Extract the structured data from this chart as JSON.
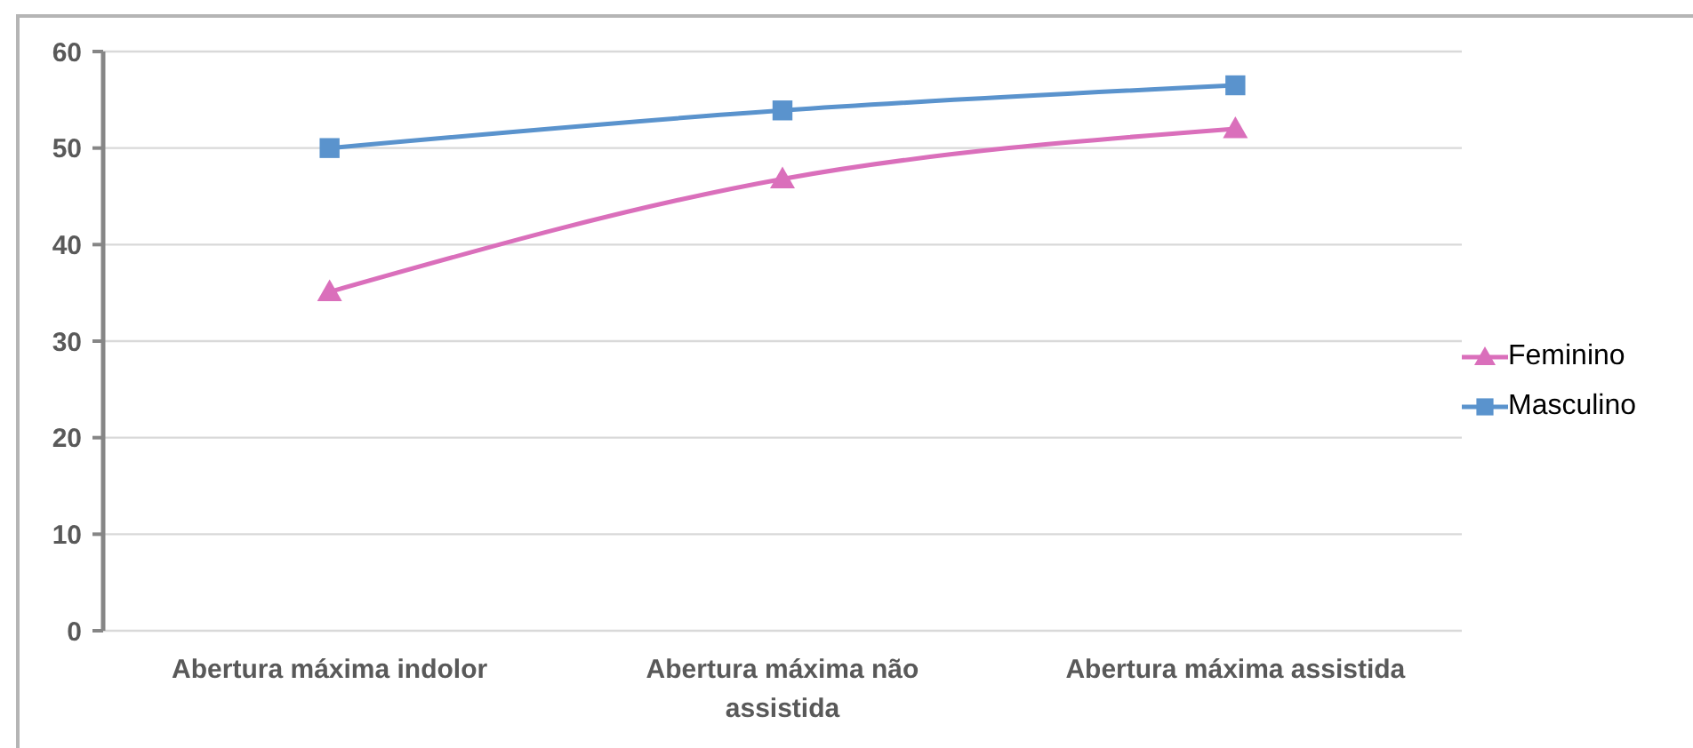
{
  "chart_data": {
    "type": "line",
    "categories": [
      "Abertura máxima indolor",
      "Abertura máxima não assistida",
      "Abertura máxima assistida"
    ],
    "series": [
      {
        "name": "Feminino",
        "color": "#da6fbb",
        "values": [
          35.1,
          46.8,
          52.0
        ],
        "marker": "triangle"
      },
      {
        "name": "Masculino",
        "color": "#5a93cd",
        "values": [
          50.0,
          53.9,
          56.5
        ],
        "marker": "square"
      }
    ],
    "ylim": [
      0,
      60
    ],
    "yticks": [
      0,
      10,
      20,
      30,
      40,
      50,
      60
    ],
    "grid": "y",
    "legend": "right",
    "line_style": "solid"
  }
}
